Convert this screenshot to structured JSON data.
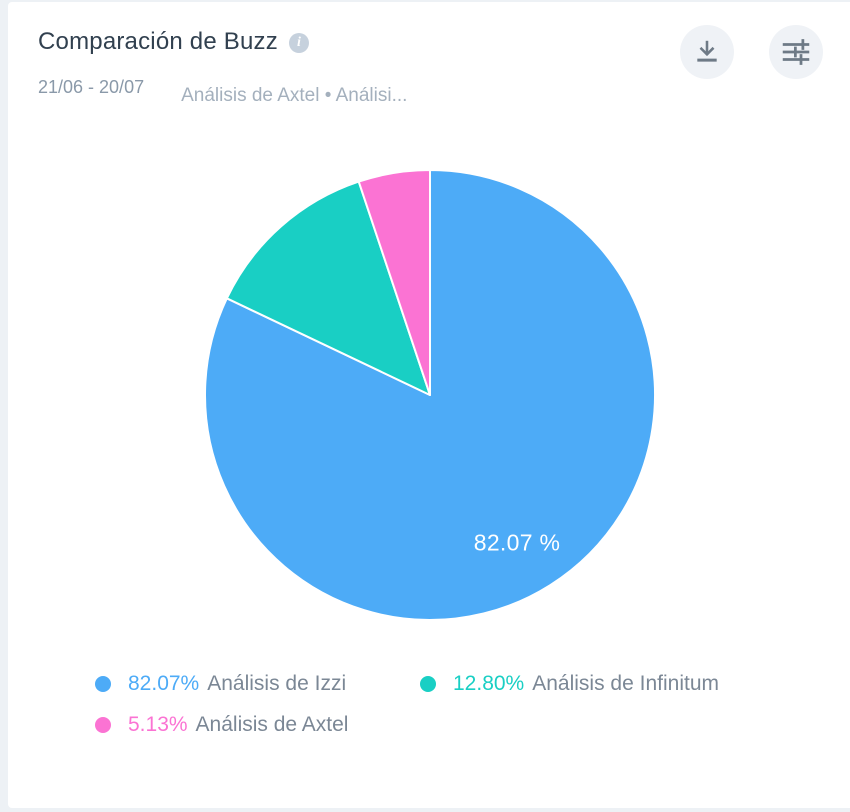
{
  "card": {
    "title": "Comparación de Buzz",
    "info_glyph": "i",
    "date_range": "21/06 - 20/07",
    "subtitle": "Análisis de Axtel • Análisi..."
  },
  "chart_data": {
    "type": "pie",
    "title": "Comparación de Buzz",
    "date_range": "21/06 - 20/07",
    "start_angle_deg": -90,
    "direction": "clockwise",
    "legend_position": "bottom",
    "inside_label": "82.07 %",
    "slices": [
      {
        "name": "Análisis de Izzi",
        "value": 82.07,
        "label": "82.07%",
        "color": "#4dabf7"
      },
      {
        "name": "Análisis de Infinitum",
        "value": 12.8,
        "label": "12.80%",
        "color": "#19cfc4"
      },
      {
        "name": "Análisis de Axtel",
        "value": 5.13,
        "label": "5.13%",
        "color": "#fb73d3"
      }
    ]
  },
  "colors": {
    "page_bg": "#edf1f5",
    "card_bg": "#ffffff",
    "title_text": "#31404f",
    "muted_text": "#8a99a9",
    "legend_text": "#7b8795",
    "button_bg": "#eff2f6",
    "icon": "#6e7a86",
    "slice_border": "#ffffff"
  }
}
